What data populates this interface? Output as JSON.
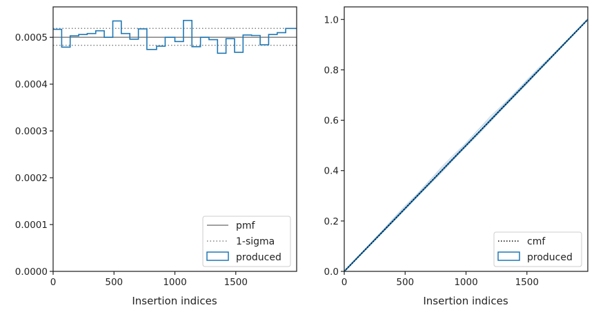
{
  "chart_data": [
    {
      "type": "step",
      "xlabel": "Insertion indices",
      "ylabel": "",
      "xlim": [
        0,
        2000
      ],
      "ylim": [
        0,
        0.000565
      ],
      "xticks": [
        0,
        500,
        1000,
        1500
      ],
      "xtick_labels": [
        "0",
        "500",
        "1000",
        "1500"
      ],
      "yticks": [
        0,
        0.0001,
        0.0002,
        0.0003,
        0.0004,
        0.0005
      ],
      "ytick_labels": [
        "0.0000",
        "0.0001",
        "0.0002",
        "0.0003",
        "0.0004",
        "0.0005"
      ],
      "pmf": 0.0005,
      "sigma_band": [
        0.000483,
        0.000519
      ],
      "bin_edges": [
        0,
        70,
        140,
        210,
        280,
        350,
        420,
        490,
        560,
        630,
        700,
        770,
        850,
        920,
        1000,
        1070,
        1140,
        1210,
        1280,
        1350,
        1420,
        1490,
        1560,
        1630,
        1700,
        1770,
        1840,
        1910,
        2000
      ],
      "produced": [
        0.000517,
        0.000479,
        0.000503,
        0.000506,
        0.000508,
        0.000514,
        0.0005,
        0.000535,
        0.000508,
        0.000496,
        0.000518,
        0.000474,
        0.000481,
        0.0005,
        0.000491,
        0.000536,
        0.00048,
        0.0005,
        0.000495,
        0.000466,
        0.000497,
        0.000468,
        0.000505,
        0.000504,
        0.000484,
        0.000506,
        0.00051,
        0.000519
      ],
      "legend": {
        "position": "lower right",
        "entries": [
          "pmf",
          "1-sigma",
          "produced"
        ]
      },
      "colors": {
        "pmf": "#808080",
        "sigma": "#808080",
        "produced": "#1f77b4"
      }
    },
    {
      "type": "line",
      "xlabel": "Insertion indices",
      "ylabel": "",
      "xlim": [
        0,
        2000
      ],
      "ylim": [
        0,
        1.05
      ],
      "xticks": [
        0,
        500,
        1000,
        1500
      ],
      "xtick_labels": [
        "0",
        "500",
        "1000",
        "1500"
      ],
      "yticks": [
        0,
        0.2,
        0.4,
        0.6,
        0.8,
        1.0
      ],
      "ytick_labels": [
        "0.0",
        "0.2",
        "0.4",
        "0.6",
        "0.8",
        "1.0"
      ],
      "cmf": {
        "x": [
          0,
          2000
        ],
        "y": [
          0,
          1.0
        ]
      },
      "produced_band": [
        0.012,
        0.006,
        0.009,
        0.004
      ],
      "legend": {
        "position": "lower right",
        "entries": [
          "cmf",
          "produced"
        ]
      },
      "colors": {
        "cmf": "#000000",
        "produced": "#1f77b4",
        "band": "#b9cde0"
      }
    }
  ]
}
